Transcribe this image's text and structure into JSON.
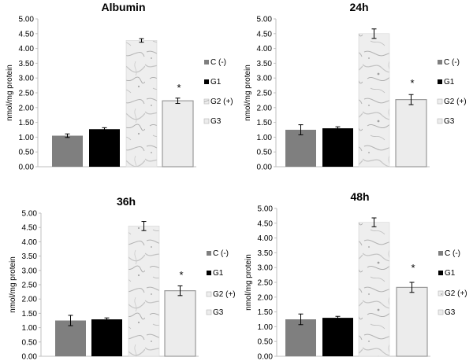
{
  "chart_data": [
    {
      "type": "bar",
      "title": "Albumin",
      "ylabel": "nmol/mg protein",
      "ylim": [
        0,
        5
      ],
      "yticks": [
        "0.00",
        "0.50",
        "1.00",
        "1.50",
        "2.00",
        "2.50",
        "3.00",
        "3.50",
        "4.00",
        "4.50",
        "5.00"
      ],
      "categories": [
        "C (-)",
        "G1",
        "G2 (+)",
        "G3"
      ],
      "values": [
        1.05,
        1.27,
        4.27,
        2.23
      ],
      "errors": [
        0.06,
        0.05,
        0.06,
        0.09
      ],
      "significance": [
        "",
        "",
        "",
        "*"
      ],
      "legend": [
        "C (-)",
        "G1",
        "G2 (+)",
        "G3"
      ],
      "grid": false
    },
    {
      "type": "bar",
      "title": "24h",
      "ylabel": "nmol/mg protein",
      "ylim": [
        0,
        5
      ],
      "yticks": [
        "0.00",
        "0.50",
        "1.00",
        "1.50",
        "2.00",
        "2.50",
        "3.00",
        "3.50",
        "4.00",
        "4.50",
        "5.00"
      ],
      "categories": [
        "C (-)",
        "G1",
        "G2 (+)",
        "G3"
      ],
      "values": [
        1.25,
        1.3,
        4.5,
        2.27
      ],
      "errors": [
        0.17,
        0.05,
        0.16,
        0.17
      ],
      "significance": [
        "",
        "",
        "",
        "*"
      ],
      "legend": [
        "C (-)",
        "G1",
        "G2 (+)",
        "G3"
      ],
      "grid": false
    },
    {
      "type": "bar",
      "title": "36h",
      "ylabel": "nmol/mg protein",
      "ylim": [
        0,
        5
      ],
      "yticks": [
        "0.00",
        "0.50",
        "1.00",
        "1.50",
        "2.00",
        "2.50",
        "3.00",
        "3.50",
        "4.00",
        "4.50",
        "5.00"
      ],
      "categories": [
        "C (-)",
        "G1",
        "G2 (+)",
        "G3"
      ],
      "values": [
        1.25,
        1.29,
        4.55,
        2.29
      ],
      "errors": [
        0.18,
        0.05,
        0.16,
        0.17
      ],
      "significance": [
        "",
        "",
        "",
        "*"
      ],
      "legend": [
        "C (-)",
        "G1",
        "G2 (+)",
        "G3"
      ],
      "grid": false
    },
    {
      "type": "bar",
      "title": "48h",
      "ylabel": "nmol/mg protein",
      "ylim": [
        0,
        5
      ],
      "yticks": [
        "0.00",
        "0.50",
        "1.00",
        "1.50",
        "2.00",
        "2.50",
        "3.00",
        "3.50",
        "4.00",
        "4.50",
        "5.00"
      ],
      "categories": [
        "C (-)",
        "G1",
        "G2 (+)",
        "G3"
      ],
      "values": [
        1.25,
        1.3,
        4.53,
        2.33
      ],
      "errors": [
        0.18,
        0.05,
        0.15,
        0.17
      ],
      "significance": [
        "",
        "",
        "",
        "*"
      ],
      "legend": [
        "C (-)",
        "G1",
        "G2 (+)",
        "G3"
      ],
      "grid": false
    }
  ],
  "series_colors": [
    "#7f7f7f",
    "#000000",
    "#ececec",
    "#ececec"
  ],
  "series_styles": [
    "solid",
    "solid",
    "marble-texture",
    "solid-outlined"
  ],
  "axis_color": "#bfbfbf",
  "error_bar_color": "#000000"
}
